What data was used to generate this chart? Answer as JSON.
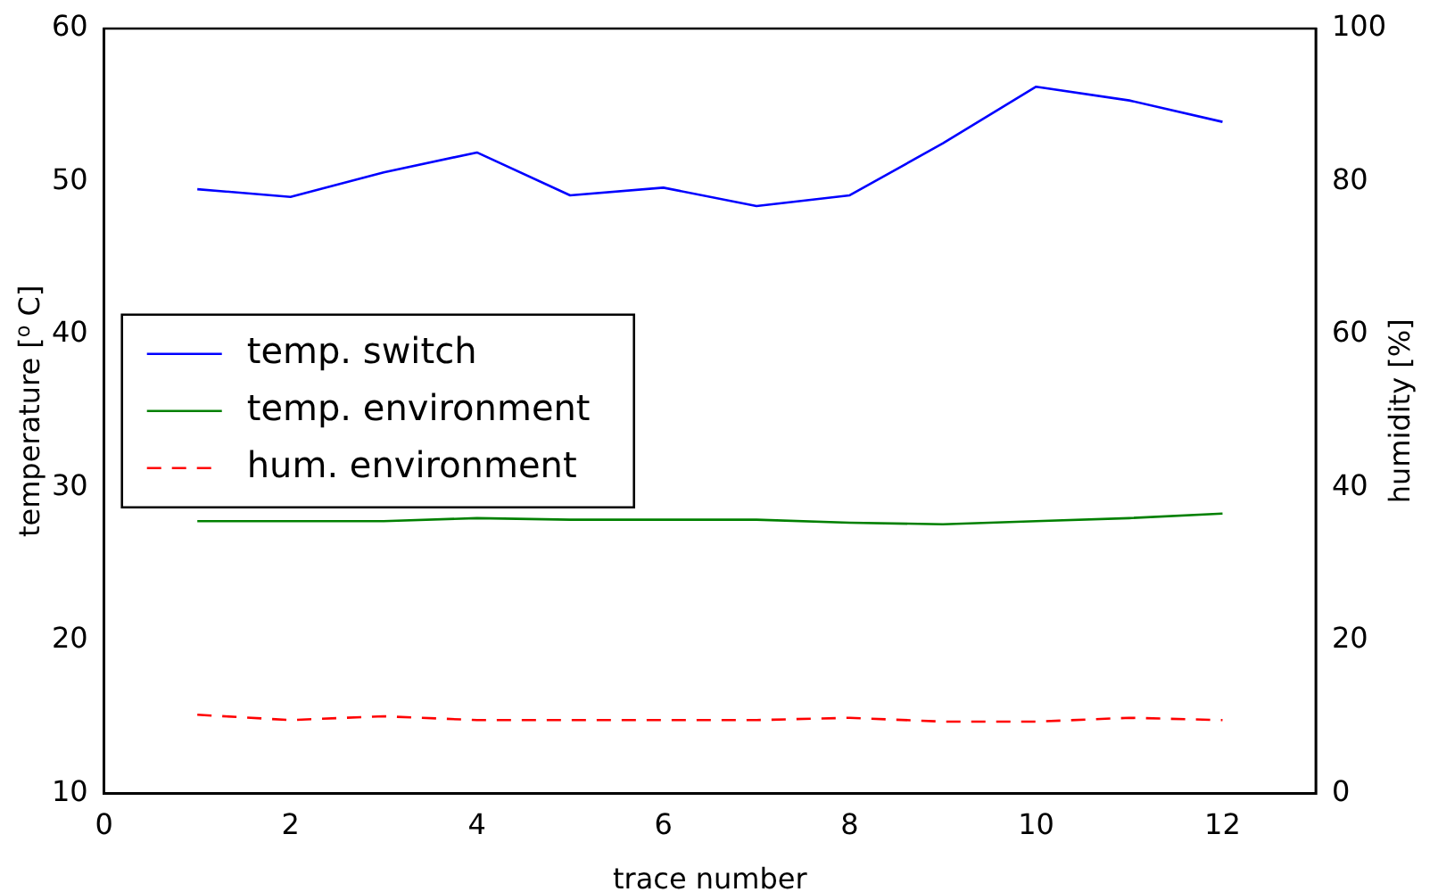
{
  "chart_data": {
    "type": "line",
    "xlabel": "trace number",
    "ylabel": "temperature [$^{o}$ C]",
    "y2label": "humidity [%]",
    "x": [
      1,
      2,
      3,
      4,
      5,
      6,
      7,
      8,
      9,
      10,
      11,
      12
    ],
    "series": [
      {
        "name": "temp. switch",
        "color": "#0000ff",
        "values": [
          49.5,
          49.0,
          50.6,
          51.9,
          49.1,
          49.6,
          48.4,
          49.1,
          52.5,
          56.2,
          55.3,
          53.9
        ]
      },
      {
        "name": "temp. environment",
        "color": "#008000",
        "values": [
          27.8,
          27.8,
          27.8,
          28.0,
          27.9,
          27.9,
          27.9,
          27.7,
          27.6,
          27.8,
          28.0,
          28.3
        ]
      },
      {
        "name": "hum. environment",
        "color": "#ff0000",
        "axis": "y2",
        "line_style": "dashed",
        "values": [
          10.3,
          9.6,
          10.1,
          9.6,
          9.6,
          9.6,
          9.6,
          9.9,
          9.4,
          9.4,
          9.9,
          9.6
        ]
      }
    ],
    "xlim": [
      0,
      13
    ],
    "xticks": [
      0,
      2,
      4,
      6,
      8,
      10,
      12
    ],
    "ylim": [
      10,
      60
    ],
    "yticks": [
      10,
      20,
      30,
      40,
      50,
      60
    ],
    "y2lim": [
      0,
      100
    ],
    "y2ticks": [
      0,
      20,
      40,
      60,
      80,
      100
    ],
    "grid": false,
    "legend": "center left",
    "marker": "none"
  }
}
